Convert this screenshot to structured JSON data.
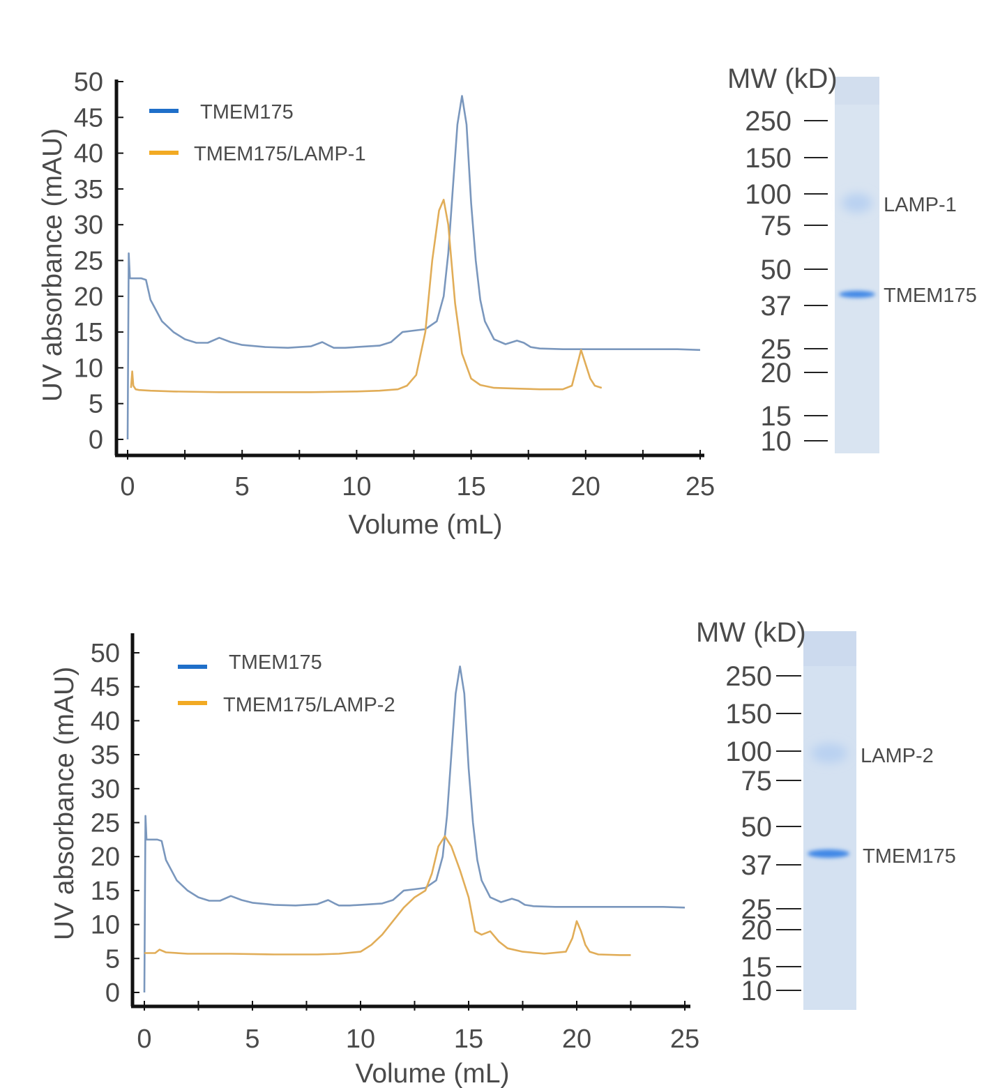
{
  "colors": {
    "blue_series": "#7a97bd",
    "orange_series": "#e1ad58",
    "legend_blue": "#1f6fc9",
    "legend_orange": "#f2aa23",
    "axis": "#111111",
    "gel_bg": "#d7e3f2",
    "gel_band": "#3f87e6"
  },
  "chart_data": [
    {
      "type": "line",
      "xlabel": "Volume (mL)",
      "ylabel": "UV absorbance (mAU)",
      "xlim": [
        0,
        25
      ],
      "ylim": [
        0,
        50
      ],
      "x_ticks": [
        "0",
        "5",
        "10",
        "15",
        "20",
        "25"
      ],
      "y_ticks": [
        "0",
        "5",
        "10",
        "15",
        "20",
        "25",
        "30",
        "35",
        "40",
        "45",
        "50"
      ],
      "legend": [
        "TMEM175",
        "TMEM175/LAMP-1"
      ],
      "series": [
        {
          "name": "TMEM175",
          "x": [
            0,
            0.05,
            0.1,
            0.2,
            0.4,
            0.6,
            0.8,
            1.0,
            1.5,
            2.0,
            2.5,
            3.0,
            3.5,
            4.0,
            4.5,
            5.0,
            6.0,
            7.0,
            8.0,
            8.5,
            8.8,
            9.0,
            9.5,
            10.0,
            11.0,
            11.5,
            12.0,
            12.5,
            13.0,
            13.5,
            13.8,
            14.0,
            14.2,
            14.4,
            14.6,
            14.8,
            15.0,
            15.2,
            15.4,
            15.6,
            16.0,
            16.5,
            17.0,
            17.3,
            17.6,
            18.0,
            19.0,
            20.0,
            22.0,
            24.0,
            25.0
          ],
          "y": [
            0,
            26,
            22.5,
            22.5,
            22.5,
            22.5,
            22.3,
            19.5,
            16.5,
            15,
            14,
            13.5,
            13.5,
            14.2,
            13.6,
            13.2,
            12.9,
            12.8,
            13.0,
            13.6,
            13.1,
            12.8,
            12.8,
            12.9,
            13.1,
            13.6,
            15.0,
            15.2,
            15.4,
            16.5,
            20.0,
            26.0,
            35.0,
            44.0,
            48.0,
            44.0,
            33.0,
            25.0,
            19.5,
            16.5,
            14.0,
            13.3,
            13.8,
            13.5,
            12.9,
            12.7,
            12.6,
            12.6,
            12.6,
            12.6,
            12.5
          ]
        },
        {
          "name": "TMEM175/LAMP-1",
          "x": [
            0.15,
            0.2,
            0.25,
            0.35,
            0.5,
            1.0,
            2.0,
            4.0,
            6.0,
            8.0,
            10.0,
            11.0,
            11.8,
            12.2,
            12.6,
            13.0,
            13.3,
            13.6,
            13.8,
            14.0,
            14.3,
            14.6,
            15.0,
            15.4,
            16.0,
            17.0,
            18.0,
            19.0,
            19.4,
            19.6,
            19.8,
            20.0,
            20.2,
            20.4,
            20.7
          ],
          "y": [
            7.2,
            9.5,
            7.5,
            7.0,
            6.9,
            6.8,
            6.7,
            6.6,
            6.6,
            6.6,
            6.7,
            6.8,
            7.0,
            7.5,
            9.0,
            15.0,
            25.0,
            32.0,
            33.5,
            30.0,
            19.0,
            12.0,
            8.5,
            7.6,
            7.2,
            7.1,
            7.0,
            7.0,
            7.5,
            10.0,
            12.5,
            10.5,
            8.5,
            7.5,
            7.2
          ]
        }
      ]
    },
    {
      "type": "line",
      "xlabel": "Volume (mL)",
      "ylabel": "UV absorbance (mAU)",
      "xlim": [
        0,
        25
      ],
      "ylim": [
        0,
        50
      ],
      "x_ticks": [
        "0",
        "5",
        "10",
        "15",
        "20",
        "25"
      ],
      "y_ticks": [
        "0",
        "5",
        "10",
        "15",
        "20",
        "25",
        "30",
        "35",
        "40",
        "45",
        "50"
      ],
      "legend": [
        "TMEM175",
        "TMEM175/LAMP-2"
      ],
      "series": [
        {
          "name": "TMEM175",
          "x": [
            0,
            0.05,
            0.1,
            0.2,
            0.4,
            0.6,
            0.8,
            1.0,
            1.5,
            2.0,
            2.5,
            3.0,
            3.5,
            4.0,
            4.5,
            5.0,
            6.0,
            7.0,
            8.0,
            8.5,
            8.8,
            9.0,
            9.5,
            10.0,
            11.0,
            11.5,
            12.0,
            12.5,
            13.0,
            13.5,
            13.8,
            14.0,
            14.2,
            14.4,
            14.6,
            14.8,
            15.0,
            15.2,
            15.4,
            15.6,
            16.0,
            16.5,
            17.0,
            17.3,
            17.6,
            18.0,
            19.0,
            20.0,
            22.0,
            24.0,
            25.0
          ],
          "y": [
            0,
            26,
            22.5,
            22.5,
            22.5,
            22.5,
            22.3,
            19.5,
            16.5,
            15,
            14,
            13.5,
            13.5,
            14.2,
            13.6,
            13.2,
            12.9,
            12.8,
            13.0,
            13.6,
            13.1,
            12.8,
            12.8,
            12.9,
            13.1,
            13.6,
            15.0,
            15.2,
            15.4,
            16.5,
            20.0,
            26.0,
            35.0,
            44.0,
            48.0,
            44.0,
            33.0,
            25.0,
            19.5,
            16.5,
            14.0,
            13.3,
            13.8,
            13.5,
            12.9,
            12.7,
            12.6,
            12.6,
            12.6,
            12.6,
            12.5
          ]
        },
        {
          "name": "TMEM175/LAMP-2",
          "x": [
            0,
            0.5,
            0.7,
            1.0,
            2.0,
            4.0,
            6.0,
            8.0,
            9.0,
            10.0,
            10.5,
            11.0,
            11.5,
            12.0,
            12.5,
            13.0,
            13.3,
            13.6,
            13.9,
            14.2,
            14.6,
            15.0,
            15.3,
            15.6,
            16.0,
            16.4,
            16.8,
            17.5,
            18.5,
            19.5,
            19.8,
            20.0,
            20.2,
            20.4,
            20.6,
            21.0,
            22.0,
            22.5
          ],
          "y": [
            5.8,
            5.8,
            6.3,
            5.9,
            5.7,
            5.7,
            5.6,
            5.6,
            5.7,
            6.0,
            7.0,
            8.5,
            10.5,
            12.5,
            14.0,
            15.0,
            17.5,
            21.5,
            23.0,
            21.5,
            18.0,
            14.0,
            9.0,
            8.5,
            9.0,
            7.5,
            6.5,
            6.0,
            5.7,
            6.0,
            8.0,
            10.5,
            9.0,
            7.0,
            6.0,
            5.6,
            5.5,
            5.5
          ]
        }
      ]
    }
  ],
  "gels": [
    {
      "title": "MW (kD)",
      "markers": [
        "250",
        "150",
        "100",
        "75",
        "50",
        "37",
        "25",
        "20",
        "15",
        "10"
      ],
      "bands": [
        {
          "label": "LAMP-1",
          "marker_kD": 100,
          "intensity": 0.25
        },
        {
          "label": "TMEM175",
          "marker_kD": 42,
          "intensity": 1.0
        }
      ]
    },
    {
      "title": "MW (kD)",
      "markers": [
        "250",
        "150",
        "100",
        "75",
        "50",
        "37",
        "25",
        "20",
        "15",
        "10"
      ],
      "bands": [
        {
          "label": "LAMP-2",
          "marker_kD": 95,
          "intensity": 0.25
        },
        {
          "label": "TMEM175",
          "marker_kD": 42,
          "intensity": 1.0
        }
      ]
    }
  ]
}
